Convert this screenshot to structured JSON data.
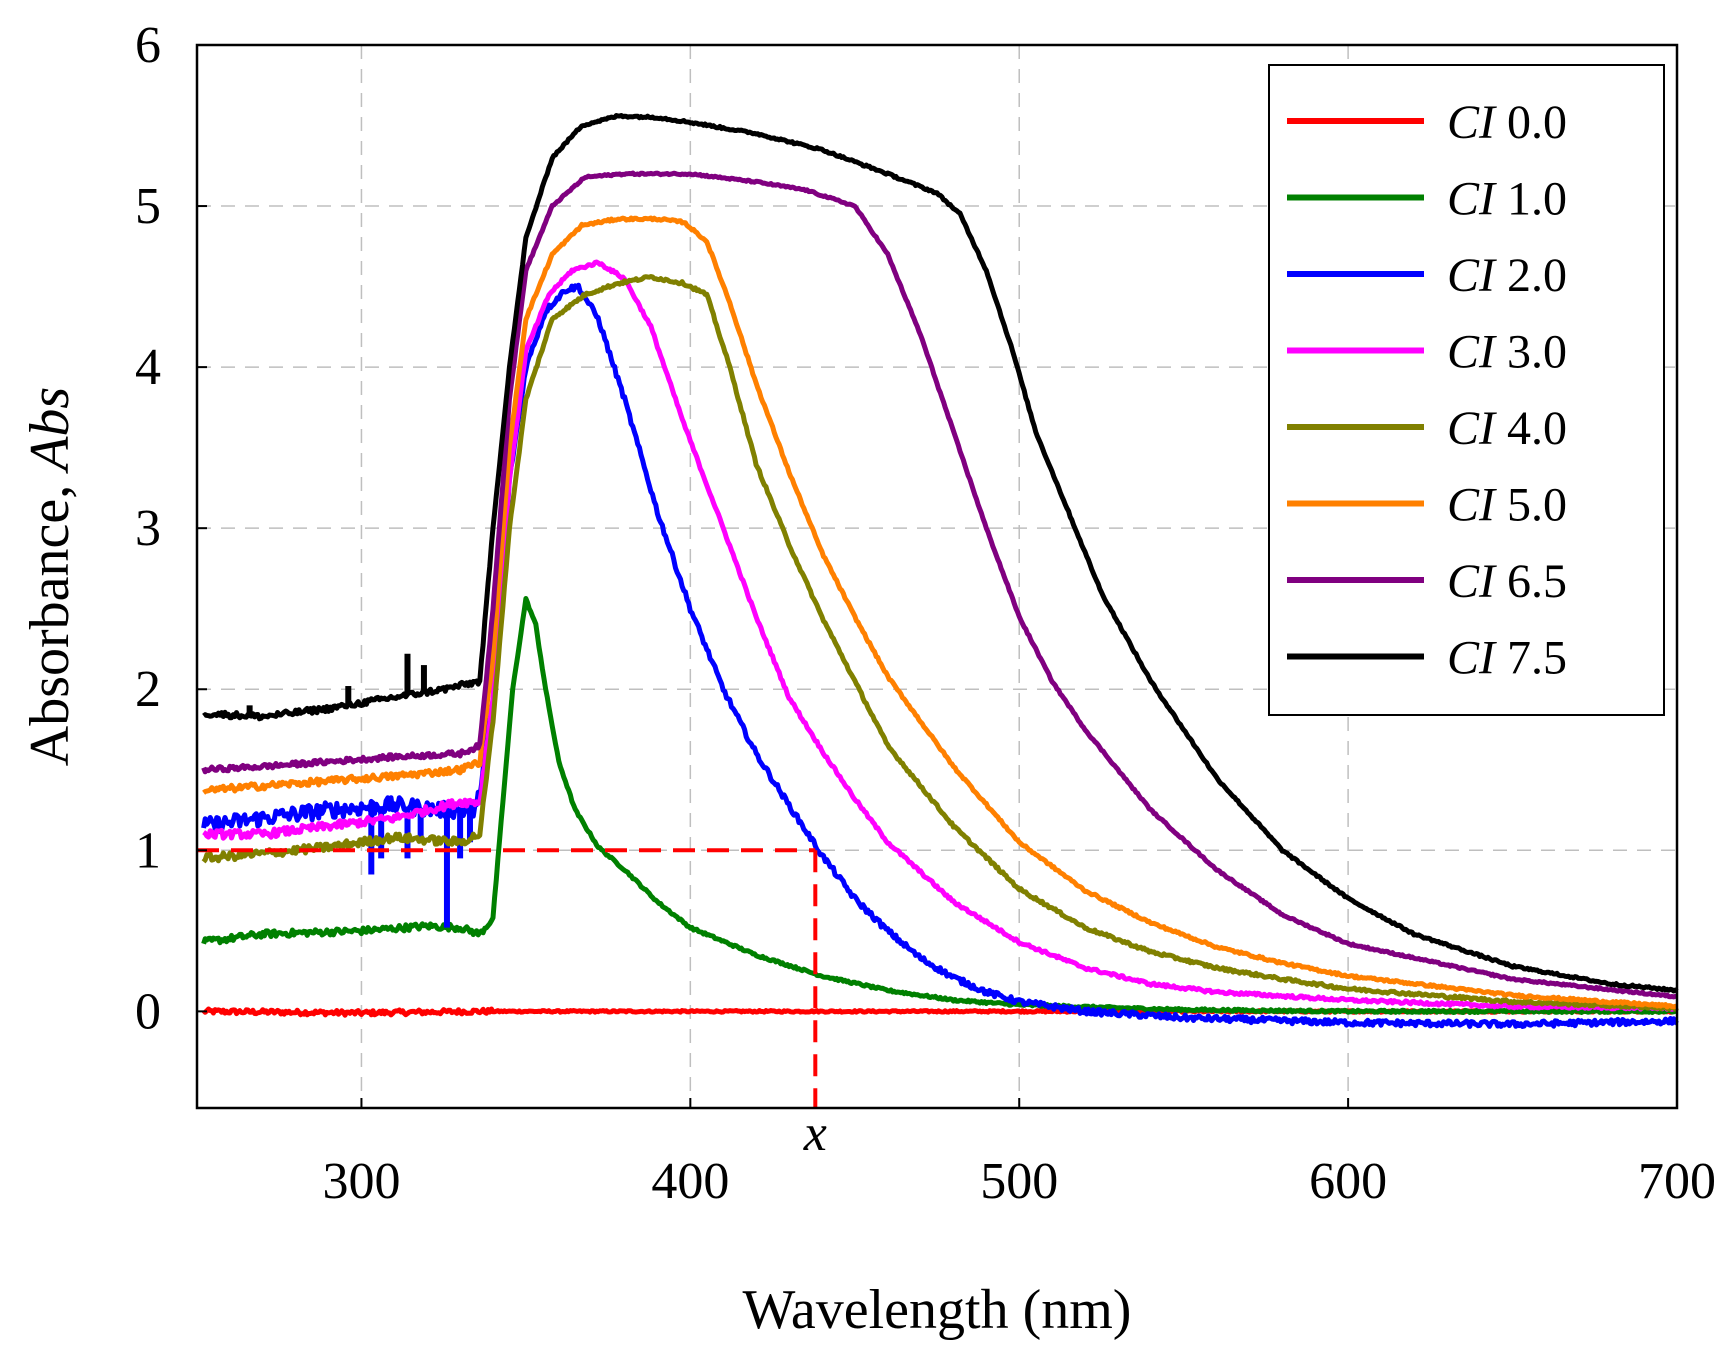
{
  "chart_data": {
    "type": "line",
    "title": "",
    "xlabel": "Wavelength (nm)",
    "ylabel": {
      "prefix": "Absorbance, ",
      "italic": "Abs"
    },
    "xlim": [
      250,
      700
    ],
    "ylim": [
      -0.6,
      6
    ],
    "xticks": [
      300,
      400,
      500,
      600,
      700
    ],
    "yticks": [
      0,
      1,
      2,
      3,
      4,
      5,
      6
    ],
    "grid": true,
    "legend_position": "top-right",
    "annotation": {
      "label": "x",
      "x": 438,
      "y": 1,
      "color": "#ff0000",
      "style": "dashed"
    },
    "series": [
      {
        "name": "0.0",
        "name_prefix": "CI",
        "color": "#ff0000",
        "noise": 0.015,
        "points": [
          [
            252,
            0.0
          ],
          [
            300,
            -0.01
          ],
          [
            335,
            0.0
          ],
          [
            345,
            0.0
          ],
          [
            400,
            0.0
          ],
          [
            500,
            0.0
          ],
          [
            600,
            0.0
          ],
          [
            700,
            0.0
          ]
        ]
      },
      {
        "name": "1.0",
        "name_prefix": "CI",
        "color": "#008000",
        "noise": 0.02,
        "points": [
          [
            252,
            0.43
          ],
          [
            270,
            0.48
          ],
          [
            300,
            0.5
          ],
          [
            320,
            0.53
          ],
          [
            330,
            0.52
          ],
          [
            336,
            0.48
          ],
          [
            340,
            0.58
          ],
          [
            343,
            1.3
          ],
          [
            346,
            2.0
          ],
          [
            350,
            2.56
          ],
          [
            353,
            2.4
          ],
          [
            356,
            2.0
          ],
          [
            360,
            1.55
          ],
          [
            365,
            1.25
          ],
          [
            372,
            1.02
          ],
          [
            380,
            0.88
          ],
          [
            390,
            0.68
          ],
          [
            400,
            0.52
          ],
          [
            420,
            0.35
          ],
          [
            440,
            0.22
          ],
          [
            460,
            0.13
          ],
          [
            480,
            0.07
          ],
          [
            500,
            0.04
          ],
          [
            550,
            0.01
          ],
          [
            600,
            0.0
          ],
          [
            700,
            0.0
          ]
        ]
      },
      {
        "name": "2.0",
        "name_prefix": "CI",
        "color": "#0000ff",
        "noise": 0.05,
        "points": [
          [
            252,
            1.15
          ],
          [
            270,
            1.2
          ],
          [
            290,
            1.25
          ],
          [
            310,
            1.28
          ],
          [
            325,
            1.25
          ],
          [
            335,
            1.25
          ],
          [
            340,
            1.9
          ],
          [
            345,
            3.3
          ],
          [
            350,
            4.0
          ],
          [
            356,
            4.35
          ],
          [
            362,
            4.48
          ],
          [
            366,
            4.5
          ],
          [
            372,
            4.3
          ],
          [
            380,
            3.8
          ],
          [
            390,
            3.1
          ],
          [
            400,
            2.5
          ],
          [
            410,
            2.0
          ],
          [
            420,
            1.6
          ],
          [
            430,
            1.28
          ],
          [
            440,
            0.97
          ],
          [
            450,
            0.7
          ],
          [
            460,
            0.5
          ],
          [
            470,
            0.33
          ],
          [
            480,
            0.21
          ],
          [
            490,
            0.12
          ],
          [
            500,
            0.06
          ],
          [
            520,
            0.0
          ],
          [
            550,
            -0.04
          ],
          [
            600,
            -0.07
          ],
          [
            650,
            -0.08
          ],
          [
            700,
            -0.06
          ]
        ],
        "spikes": [
          [
            303,
            0.85
          ],
          [
            306,
            0.95
          ],
          [
            314,
            0.95
          ],
          [
            318,
            1.05
          ],
          [
            326,
            0.52
          ],
          [
            330,
            0.95
          ],
          [
            333,
            1.05
          ]
        ]
      },
      {
        "name": "3.0",
        "name_prefix": "CI",
        "color": "#ff00ff",
        "noise": 0.025,
        "points": [
          [
            252,
            1.1
          ],
          [
            270,
            1.1
          ],
          [
            290,
            1.15
          ],
          [
            310,
            1.2
          ],
          [
            330,
            1.3
          ],
          [
            336,
            1.3
          ],
          [
            340,
            1.95
          ],
          [
            345,
            3.3
          ],
          [
            350,
            4.1
          ],
          [
            357,
            4.45
          ],
          [
            364,
            4.6
          ],
          [
            372,
            4.65
          ],
          [
            380,
            4.55
          ],
          [
            388,
            4.25
          ],
          [
            398,
            3.65
          ],
          [
            410,
            3.0
          ],
          [
            420,
            2.45
          ],
          [
            430,
            1.95
          ],
          [
            440,
            1.62
          ],
          [
            450,
            1.32
          ],
          [
            460,
            1.05
          ],
          [
            480,
            0.68
          ],
          [
            500,
            0.43
          ],
          [
            520,
            0.27
          ],
          [
            540,
            0.17
          ],
          [
            560,
            0.12
          ],
          [
            600,
            0.07
          ],
          [
            650,
            0.03
          ],
          [
            700,
            0.02
          ]
        ]
      },
      {
        "name": "4.0",
        "name_prefix": "CI",
        "color": "#808000",
        "noise": 0.025,
        "points": [
          [
            252,
            0.95
          ],
          [
            270,
            0.98
          ],
          [
            290,
            1.02
          ],
          [
            310,
            1.08
          ],
          [
            330,
            1.05
          ],
          [
            336,
            1.1
          ],
          [
            340,
            1.8
          ],
          [
            345,
            3.0
          ],
          [
            350,
            3.8
          ],
          [
            358,
            4.3
          ],
          [
            368,
            4.45
          ],
          [
            378,
            4.52
          ],
          [
            388,
            4.56
          ],
          [
            398,
            4.52
          ],
          [
            405,
            4.45
          ],
          [
            412,
            4.0
          ],
          [
            420,
            3.4
          ],
          [
            430,
            2.9
          ],
          [
            440,
            2.45
          ],
          [
            450,
            2.05
          ],
          [
            460,
            1.65
          ],
          [
            480,
            1.15
          ],
          [
            500,
            0.76
          ],
          [
            520,
            0.52
          ],
          [
            540,
            0.37
          ],
          [
            560,
            0.27
          ],
          [
            580,
            0.2
          ],
          [
            600,
            0.14
          ],
          [
            650,
            0.06
          ],
          [
            700,
            0.02
          ]
        ]
      },
      {
        "name": "5.0",
        "name_prefix": "CI",
        "color": "#ff8000",
        "noise": 0.02,
        "points": [
          [
            252,
            1.37
          ],
          [
            270,
            1.4
          ],
          [
            290,
            1.43
          ],
          [
            310,
            1.46
          ],
          [
            330,
            1.5
          ],
          [
            336,
            1.55
          ],
          [
            340,
            2.2
          ],
          [
            345,
            3.5
          ],
          [
            350,
            4.3
          ],
          [
            358,
            4.7
          ],
          [
            367,
            4.88
          ],
          [
            378,
            4.92
          ],
          [
            390,
            4.92
          ],
          [
            398,
            4.9
          ],
          [
            405,
            4.78
          ],
          [
            412,
            4.4
          ],
          [
            420,
            3.9
          ],
          [
            430,
            3.35
          ],
          [
            440,
            2.85
          ],
          [
            450,
            2.45
          ],
          [
            460,
            2.08
          ],
          [
            480,
            1.52
          ],
          [
            500,
            1.05
          ],
          [
            520,
            0.75
          ],
          [
            540,
            0.55
          ],
          [
            560,
            0.4
          ],
          [
            580,
            0.3
          ],
          [
            600,
            0.22
          ],
          [
            650,
            0.1
          ],
          [
            700,
            0.03
          ]
        ]
      },
      {
        "name": "6.5",
        "name_prefix": "CI",
        "color": "#800080",
        "noise": 0.015,
        "points": [
          [
            252,
            1.5
          ],
          [
            270,
            1.52
          ],
          [
            290,
            1.55
          ],
          [
            310,
            1.58
          ],
          [
            330,
            1.6
          ],
          [
            336,
            1.65
          ],
          [
            340,
            2.5
          ],
          [
            345,
            3.8
          ],
          [
            350,
            4.6
          ],
          [
            358,
            5.0
          ],
          [
            368,
            5.18
          ],
          [
            380,
            5.2
          ],
          [
            400,
            5.2
          ],
          [
            420,
            5.15
          ],
          [
            435,
            5.1
          ],
          [
            450,
            5.0
          ],
          [
            460,
            4.7
          ],
          [
            470,
            4.2
          ],
          [
            480,
            3.6
          ],
          [
            490,
            3.0
          ],
          [
            500,
            2.45
          ],
          [
            510,
            2.05
          ],
          [
            520,
            1.75
          ],
          [
            540,
            1.25
          ],
          [
            560,
            0.88
          ],
          [
            580,
            0.6
          ],
          [
            600,
            0.42
          ],
          [
            650,
            0.2
          ],
          [
            700,
            0.09
          ]
        ]
      },
      {
        "name": "7.5",
        "name_prefix": "CI",
        "color": "#000000",
        "noise": 0.018,
        "points": [
          [
            252,
            1.85
          ],
          [
            270,
            1.83
          ],
          [
            290,
            1.88
          ],
          [
            310,
            1.95
          ],
          [
            325,
            2.0
          ],
          [
            336,
            2.05
          ],
          [
            340,
            3.0
          ],
          [
            345,
            4.0
          ],
          [
            350,
            4.8
          ],
          [
            358,
            5.3
          ],
          [
            367,
            5.5
          ],
          [
            378,
            5.56
          ],
          [
            390,
            5.55
          ],
          [
            400,
            5.52
          ],
          [
            420,
            5.45
          ],
          [
            440,
            5.35
          ],
          [
            460,
            5.2
          ],
          [
            475,
            5.08
          ],
          [
            482,
            4.95
          ],
          [
            490,
            4.6
          ],
          [
            498,
            4.1
          ],
          [
            505,
            3.6
          ],
          [
            515,
            3.1
          ],
          [
            525,
            2.6
          ],
          [
            540,
            2.05
          ],
          [
            560,
            1.45
          ],
          [
            580,
            1.0
          ],
          [
            600,
            0.7
          ],
          [
            620,
            0.48
          ],
          [
            650,
            0.28
          ],
          [
            680,
            0.17
          ],
          [
            700,
            0.13
          ]
        ],
        "spikes": [
          [
            266,
            1.9
          ],
          [
            296,
            2.02
          ],
          [
            314,
            2.22
          ],
          [
            319,
            2.15
          ]
        ]
      }
    ]
  }
}
